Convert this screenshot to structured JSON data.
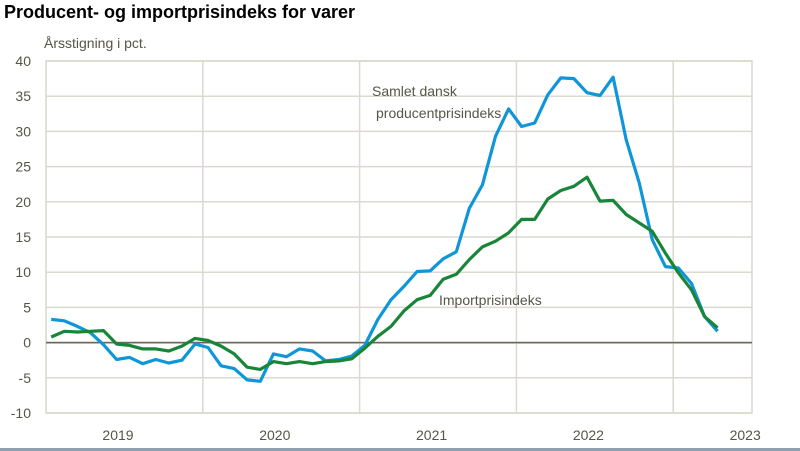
{
  "chart_data": {
    "type": "line",
    "title": "Producent- og importprisindeks for varer",
    "ylabel": "Årsstigning i pct.",
    "xlabel": "",
    "ylim": [
      -10,
      40
    ],
    "yticks": [
      40,
      35,
      30,
      25,
      20,
      15,
      10,
      5,
      0,
      -5,
      -10
    ],
    "x_tick_labels": [
      "2019",
      "2020",
      "2021",
      "2022",
      "2023"
    ],
    "x_start": "2019-01",
    "x_end": "2023-04",
    "x_frequency": "monthly",
    "grid": true,
    "legend": "inline labels",
    "series": [
      {
        "name": "Samlet dansk producentprisindeks",
        "label_lines": [
          "Samlet dansk",
          "producentprisindeks"
        ],
        "color": "#0f96d8",
        "values": [
          3.3,
          3.1,
          2.3,
          1.4,
          -0.3,
          -2.4,
          -2.1,
          -3.0,
          -2.4,
          -2.9,
          -2.5,
          -0.2,
          -0.7,
          -3.3,
          -3.7,
          -5.3,
          -5.5,
          -1.6,
          -2.0,
          -0.9,
          -1.2,
          -2.6,
          -2.4,
          -1.9,
          -0.4,
          3.3,
          6.1,
          8.0,
          10.1,
          10.2,
          11.9,
          12.9,
          19.1,
          22.4,
          29.3,
          33.2,
          30.7,
          31.2,
          35.2,
          37.6,
          37.5,
          35.5,
          35.1,
          37.7,
          28.8,
          22.7,
          14.6,
          10.8,
          10.6,
          8.4,
          3.7,
          1.6
        ]
      },
      {
        "name": "Importprisindeks",
        "label_lines": [
          "Importprisindeks"
        ],
        "color": "#188539",
        "values": [
          0.8,
          1.6,
          1.5,
          1.6,
          1.7,
          -0.2,
          -0.4,
          -0.9,
          -0.9,
          -1.2,
          -0.5,
          0.6,
          0.3,
          -0.5,
          -1.6,
          -3.5,
          -3.8,
          -2.7,
          -3.0,
          -2.7,
          -3.0,
          -2.7,
          -2.6,
          -2.3,
          -0.8,
          0.9,
          2.3,
          4.5,
          6.1,
          6.7,
          9.0,
          9.7,
          11.8,
          13.6,
          14.4,
          15.6,
          17.5,
          17.5,
          20.4,
          21.6,
          22.2,
          23.5,
          20.1,
          20.2,
          18.2,
          17.0,
          15.8,
          12.7,
          9.9,
          7.5,
          3.7,
          2.1
        ]
      }
    ]
  }
}
